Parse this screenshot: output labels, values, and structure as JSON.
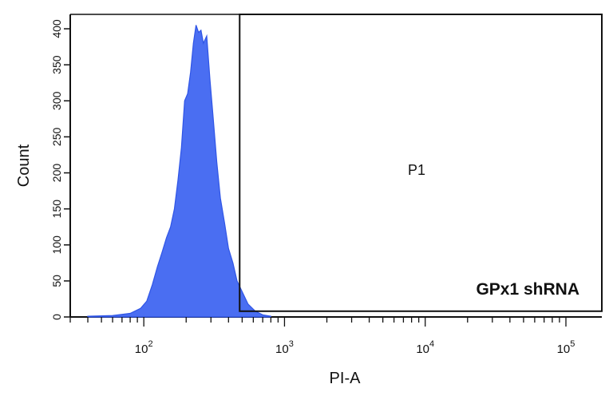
{
  "chart_data": {
    "type": "area",
    "xlabel": "PI-A",
    "ylabel": "Count",
    "x_scale": "log",
    "x_ticks": [
      {
        "base": "10",
        "exp": "2",
        "value": 100
      },
      {
        "base": "10",
        "exp": "3",
        "value": 1000
      },
      {
        "base": "10",
        "exp": "4",
        "value": 10000
      },
      {
        "base": "10",
        "exp": "5",
        "value": 100000
      }
    ],
    "y_ticks": [
      "0",
      "50",
      "100",
      "150",
      "200",
      "250",
      "300",
      "350",
      "400"
    ],
    "xlim": [
      30,
      180000
    ],
    "ylim": [
      0,
      420
    ],
    "fill_color": "#4a6ef2",
    "line_color": "#2f55e6",
    "gate": {
      "label": "P1",
      "x_start": 480,
      "x_end": 180000,
      "y_top": 420,
      "y_bottom": 8
    },
    "annotation": "GPx1 shRNA",
    "series": [
      {
        "x": [
          40,
          60,
          80,
          95,
          105,
          115,
          125,
          135,
          145,
          155,
          165,
          175,
          185,
          195,
          205,
          215,
          225,
          235,
          245,
          255,
          265,
          280,
          295,
          310,
          330,
          350,
          375,
          400,
          430,
          460,
          500,
          550,
          620,
          700,
          800
        ],
        "y": [
          1,
          2,
          5,
          12,
          22,
          45,
          70,
          90,
          110,
          125,
          150,
          190,
          235,
          300,
          310,
          340,
          380,
          405,
          395,
          398,
          380,
          390,
          330,
          280,
          215,
          165,
          130,
          95,
          75,
          50,
          35,
          18,
          8,
          3,
          1
        ]
      }
    ]
  }
}
